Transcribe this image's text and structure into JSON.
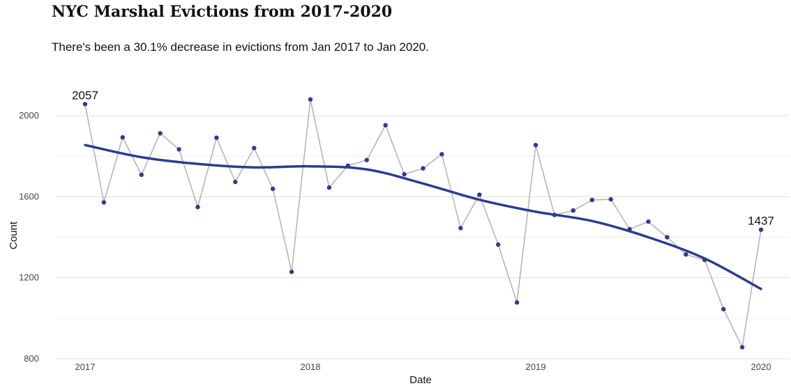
{
  "chart_data": {
    "type": "line",
    "title": "NYC Marshal Evictions from 2017-2020",
    "subtitle": "There's been a 30.1% decrease in evictions from Jan 2017 to Jan 2020.",
    "xlabel": "Date",
    "ylabel": "Count",
    "ylim": [
      800,
      2150
    ],
    "yticks": [
      800,
      1200,
      1600,
      2000
    ],
    "xticks": [
      "2017",
      "2018",
      "2019",
      "2020"
    ],
    "grid": true,
    "series": [
      {
        "x": [
          "2017-01",
          "2017-02",
          "2017-03",
          "2017-04",
          "2017-05",
          "2017-06",
          "2017-07",
          "2017-08",
          "2017-09",
          "2017-10",
          "2017-11",
          "2017-12",
          "2018-01",
          "2018-02",
          "2018-03",
          "2018-04",
          "2018-05",
          "2018-06",
          "2018-07",
          "2018-08",
          "2018-09",
          "2018-10",
          "2018-11",
          "2018-12",
          "2019-01",
          "2019-02",
          "2019-03",
          "2019-04",
          "2019-05",
          "2019-06",
          "2019-07",
          "2019-08",
          "2019-09",
          "2019-10",
          "2019-11",
          "2019-12",
          "2020-01"
        ],
        "values": [
          2057,
          1572,
          1893,
          1708,
          1913,
          1834,
          1549,
          1891,
          1673,
          1840,
          1639,
          1229,
          2080,
          1645,
          1753,
          1781,
          1953,
          1711,
          1740,
          1810,
          1445,
          1610,
          1364,
          1078,
          1855,
          1510,
          1532,
          1584,
          1587,
          1440,
          1477,
          1400,
          1315,
          1288,
          1045,
          857,
          1437
        ],
        "color": "#b5b5b5",
        "point_color": "#2b3d8f"
      },
      {
        "type": "smooth",
        "x": [
          "2017-01",
          "2017-04",
          "2017-07",
          "2017-10",
          "2018-01",
          "2018-04",
          "2018-07",
          "2018-10",
          "2019-01",
          "2019-04",
          "2019-07",
          "2019-10",
          "2020-01"
        ],
        "values": [
          1855,
          1795,
          1762,
          1745,
          1750,
          1735,
          1665,
          1585,
          1526,
          1480,
          1400,
          1295,
          1145
        ],
        "color": "#2b3d8f"
      }
    ],
    "annotations": [
      {
        "x": "2017-01",
        "y": 2057,
        "text": "2057"
      },
      {
        "x": "2020-01",
        "y": 1437,
        "text": "1437"
      }
    ]
  }
}
